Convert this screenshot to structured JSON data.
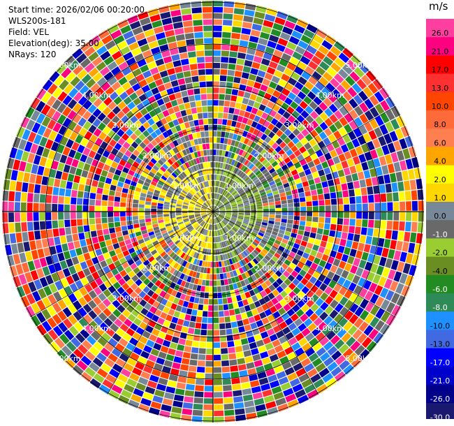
{
  "header": {
    "start_time": "Start time: 2026/02/06 00:20:00",
    "instrument": "WLS200s-181",
    "field": "Field: VEL",
    "elevation": "Elevation(deg): 35.00",
    "nrays": "NRays: 120"
  },
  "range_ring_labels": [
    "1.00km",
    "2.00km",
    "3.00km",
    "4.00km",
    "5.00km"
  ],
  "colorbar": {
    "unit": "m/s",
    "levels": [
      {
        "label": "26.0",
        "color": "#ff3fa0"
      },
      {
        "label": "21.0",
        "color": "#ff0080"
      },
      {
        "label": "17.0",
        "color": "#ff0000"
      },
      {
        "label": "13.0",
        "color": "#ff3030"
      },
      {
        "label": "10.0",
        "color": "#ff4500"
      },
      {
        "label": "8.0",
        "color": "#ff6a3a"
      },
      {
        "label": "6.0",
        "color": "#ff7f50"
      },
      {
        "label": "4.0",
        "color": "#ffa500"
      },
      {
        "label": "2.0",
        "color": "#ffff00"
      },
      {
        "label": "1.0",
        "color": "#ffd700"
      },
      {
        "label": "0.0",
        "color": "#778899"
      },
      {
        "label": "-1.0",
        "color": "#696969"
      },
      {
        "label": "-2.0",
        "color": "#9acd32"
      },
      {
        "label": "-4.0",
        "color": "#6b8e23"
      },
      {
        "label": "-6.0",
        "color": "#228b22"
      },
      {
        "label": "-8.0",
        "color": "#2e8b57"
      },
      {
        "label": "-10.0",
        "color": "#1e90ff"
      },
      {
        "label": "-13.0",
        "color": "#4169e1"
      },
      {
        "label": "-17.0",
        "color": "#0000ff"
      },
      {
        "label": "-21.0",
        "color": "#0000cd"
      },
      {
        "label": "-26.0",
        "color": "#00008b"
      },
      {
        "label": "-30.0",
        "color": "#191970"
      }
    ]
  }
}
